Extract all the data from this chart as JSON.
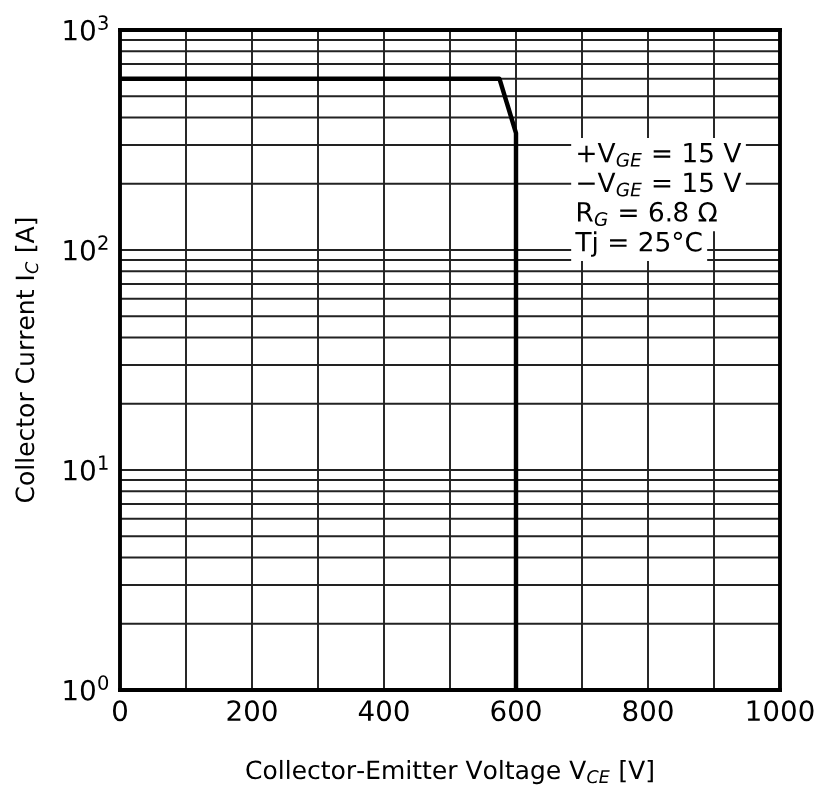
{
  "chart_data": {
    "type": "line",
    "xlabel": "Collector-Emitter Voltage V$_{CE}$ [V]",
    "ylabel": "Collector Current I$_{C}$ [A]",
    "x": [
      0,
      575,
      600,
      600
    ],
    "series": [
      {
        "color": "#000000",
        "values": [
          600,
          600,
          340,
          1
        ]
      }
    ],
    "log": "y",
    "xlim": [
      0,
      1000
    ],
    "xticks": [
      0,
      {
        "value": 100,
        "label": null
      },
      200,
      {
        "value": 300,
        "label": null
      },
      400,
      {
        "value": 500,
        "label": null
      },
      600,
      {
        "value": 700,
        "label": null
      },
      800,
      {
        "value": 900,
        "label": null
      },
      1000
    ],
    "ylim": [
      1,
      1000
    ],
    "yticks": [
      {
        "value": 1,
        "label": "10$^{0}$"
      },
      {
        "value": 2,
        "label": null
      },
      {
        "value": 3,
        "label": null
      },
      {
        "value": 4,
        "label": null
      },
      {
        "value": 5,
        "label": null
      },
      {
        "value": 6,
        "label": null
      },
      {
        "value": 7,
        "label": null
      },
      {
        "value": 8,
        "label": null
      },
      {
        "value": 9,
        "label": null
      },
      {
        "value": 10,
        "label": "10$^{1}$"
      },
      {
        "value": 20,
        "label": null
      },
      {
        "value": 30,
        "label": null
      },
      {
        "value": 40,
        "label": null
      },
      {
        "value": 50,
        "label": null
      },
      {
        "value": 60,
        "label": null
      },
      {
        "value": 70,
        "label": null
      },
      {
        "value": 80,
        "label": null
      },
      {
        "value": 90,
        "label": null
      },
      {
        "value": 100,
        "label": "10$^{2}$"
      },
      {
        "value": 200,
        "label": null
      },
      {
        "value": 300,
        "label": null
      },
      {
        "value": 400,
        "label": null
      },
      {
        "value": 500,
        "label": null
      },
      {
        "value": 600,
        "label": null
      },
      {
        "value": 700,
        "label": null
      },
      {
        "value": 800,
        "label": null
      },
      {
        "value": 900,
        "label": null
      },
      {
        "value": 1000,
        "label": "10$^{3}$"
      }
    ],
    "grid": true,
    "annotations": [
      "+V$_{GE}$ = 15 V",
      "−V$_{GE}$ = 15 V",
      "R$_{G}$ = 6.8 Ω",
      "Tj = 25°C"
    ]
  }
}
